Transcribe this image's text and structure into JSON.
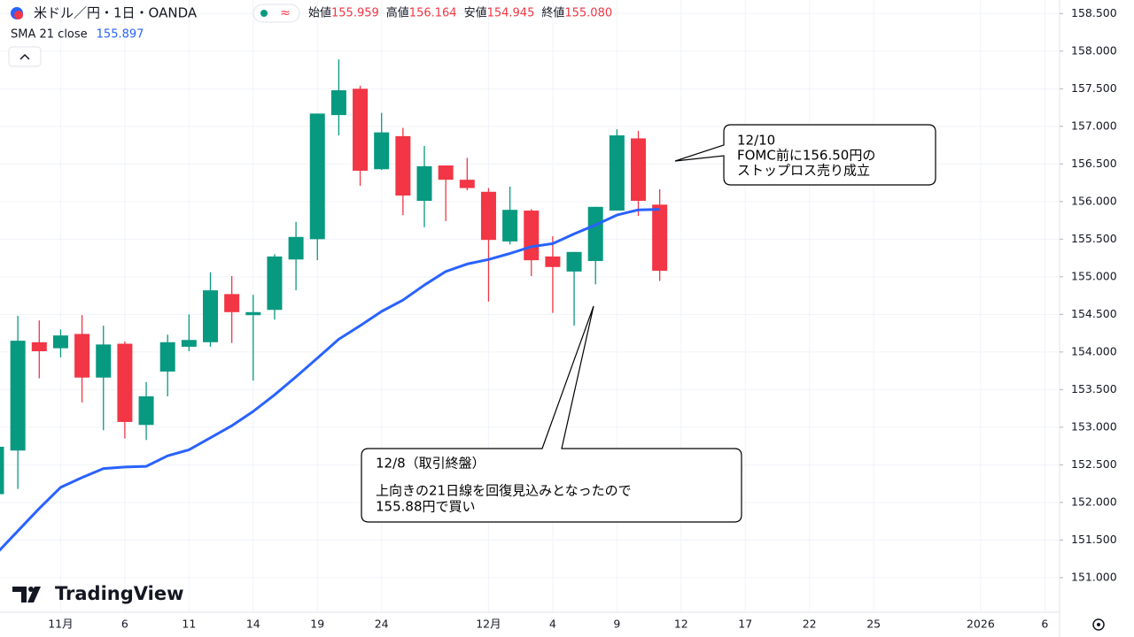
{
  "chart_data": {
    "type": "candlestick",
    "title": "米ドル／円・1日・OANDA",
    "ohlc_legend": {
      "labels": [
        "始値",
        "高値",
        "安値",
        "終値"
      ],
      "values": [
        155.959,
        156.164,
        154.945,
        155.08
      ],
      "value_labels": [
        "155.959",
        "156.164",
        "154.945",
        "155.080"
      ]
    },
    "categories": [
      null,
      null,
      null,
      "11月",
      null,
      null,
      "6",
      null,
      null,
      "11",
      null,
      null,
      "14",
      null,
      null,
      "19",
      null,
      null,
      "24",
      null,
      null,
      null,
      null,
      "12月",
      null,
      null,
      "4",
      null,
      null,
      "9",
      null,
      null,
      "12",
      null,
      null,
      "17",
      null,
      null,
      "22",
      null,
      null,
      "25",
      null,
      null,
      null,
      null,
      "2026",
      null,
      null,
      "6"
    ],
    "up_color": "#089981",
    "down_color": "#f23645",
    "open": [
      152.11,
      152.69,
      154.13,
      154.05,
      154.24,
      153.66,
      154.11,
      153.03,
      153.74,
      154.07,
      154.13,
      154.77,
      154.49,
      154.56,
      155.23,
      155.5,
      157.15,
      157.5,
      156.43,
      156.87,
      156.01,
      156.48,
      156.29,
      156.13,
      155.47,
      155.88,
      155.27,
      155.07,
      155.21,
      155.88,
      156.84,
      155.959,
      null,
      null,
      null,
      null,
      null,
      null,
      null,
      null,
      null,
      null,
      null,
      null,
      null,
      null,
      null,
      null,
      null,
      null
    ],
    "high": [
      152.8,
      154.48,
      154.42,
      154.3,
      154.49,
      154.35,
      154.14,
      153.6,
      154.23,
      154.5,
      155.06,
      155.01,
      154.76,
      155.3,
      155.73,
      157.17,
      157.89,
      157.54,
      157.18,
      156.98,
      156.74,
      156.48,
      156.58,
      156.18,
      156.2,
      155.9,
      155.54,
      155.33,
      155.93,
      156.96,
      156.94,
      156.164,
      null,
      null,
      null,
      null,
      null,
      null,
      null,
      null,
      null,
      null,
      null,
      null,
      null,
      null,
      null,
      null,
      null,
      null
    ],
    "low": [
      152.0,
      152.18,
      153.65,
      153.93,
      153.33,
      152.96,
      152.85,
      152.83,
      153.41,
      154.01,
      154.07,
      154.12,
      153.62,
      154.43,
      154.82,
      155.22,
      156.88,
      156.21,
      156.42,
      155.82,
      155.66,
      155.74,
      156.15,
      154.67,
      155.43,
      155.01,
      154.52,
      154.35,
      154.9,
      155.88,
      155.81,
      154.945,
      null,
      null,
      null,
      null,
      null,
      null,
      null,
      null,
      null,
      null,
      null,
      null,
      null,
      null,
      null,
      null,
      null,
      null
    ],
    "close": [
      152.74,
      154.15,
      154.01,
      154.22,
      153.66,
      154.1,
      153.07,
      153.41,
      154.13,
      154.16,
      154.82,
      154.53,
      154.53,
      155.27,
      155.53,
      157.17,
      157.48,
      156.41,
      156.92,
      156.08,
      156.47,
      156.29,
      156.18,
      155.49,
      155.89,
      155.22,
      155.13,
      155.33,
      155.93,
      156.88,
      156.01,
      155.08,
      null,
      null,
      null,
      null,
      null,
      null,
      null,
      null,
      null,
      null,
      null,
      null,
      null,
      null,
      null,
      null,
      null,
      null
    ],
    "overlays": [
      {
        "name": "SMA 21 close",
        "color": "#2962ff",
        "values": [
          151.32,
          151.62,
          151.92,
          152.2,
          152.33,
          152.45,
          152.47,
          152.48,
          152.62,
          152.7,
          152.86,
          153.02,
          153.21,
          153.43,
          153.67,
          153.92,
          154.17,
          154.35,
          154.54,
          154.69,
          154.89,
          155.07,
          155.17,
          155.23,
          155.31,
          155.4,
          155.44,
          155.57,
          155.69,
          155.82,
          155.89,
          155.897,
          null,
          null,
          null,
          null,
          null,
          null,
          null,
          null,
          null,
          null,
          null,
          null,
          null,
          null,
          null,
          null,
          null,
          null
        ]
      }
    ],
    "ylim": [
      150.54,
      158.68
    ],
    "yticks": [
      {
        "value": 151,
        "label": "151.000"
      },
      {
        "value": 151.5,
        "label": "151.500"
      },
      {
        "value": 152,
        "label": "152.000"
      },
      {
        "value": 152.5,
        "label": "152.500"
      },
      {
        "value": 153,
        "label": "153.000"
      },
      {
        "value": 153.5,
        "label": "153.500"
      },
      {
        "value": 154,
        "label": "154.000"
      },
      {
        "value": 154.5,
        "label": "154.500"
      },
      {
        "value": 155,
        "label": "155.000"
      },
      {
        "value": 155.5,
        "label": "155.500"
      },
      {
        "value": 156,
        "label": "156.000"
      },
      {
        "value": 156.5,
        "label": "156.500"
      },
      {
        "value": 157,
        "label": "157.000"
      },
      {
        "value": 157.5,
        "label": "157.500"
      },
      {
        "value": 158,
        "label": "158.000"
      },
      {
        "value": 158.5,
        "label": "158.500"
      }
    ],
    "grid": true,
    "annotations": [
      {
        "lines": [
          "12/10",
          "FOMC前に156.50円の",
          "ストップロス売り成立"
        ]
      },
      {
        "title": "12/8（取引終盤）",
        "lines": [
          "上向きの21日線を回復見込みとなったので",
          "155.88円で買い"
        ]
      }
    ],
    "brand": "TradingView"
  }
}
